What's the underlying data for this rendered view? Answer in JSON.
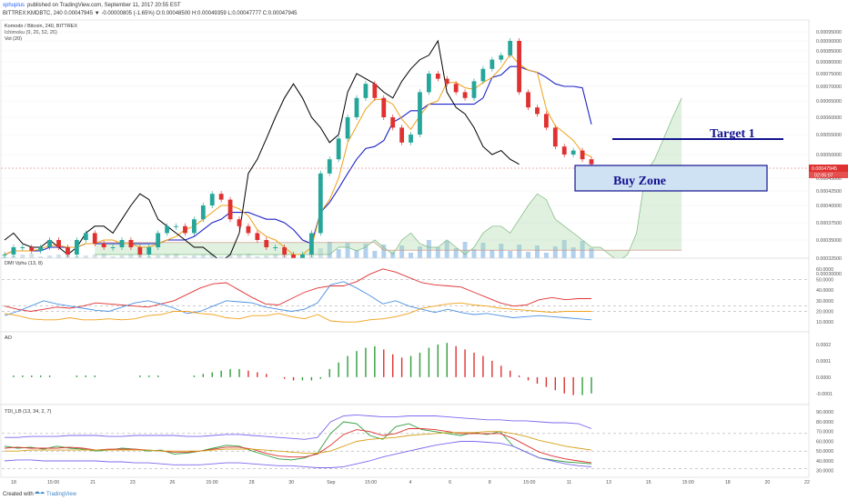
{
  "header": {
    "publisher": "xphuplus",
    "published_text": "published on TradingView.com, September 11, 2017 20:55 EST",
    "symbol_line": "BITTREX:KMDBTC, 240  0.00047945 ▼ -0.00000805 (-1.65%)  O:0.00048500  H:0.00049359  L:0.00047777  C:0.00047945"
  },
  "main_pane": {
    "title": "Komodo / Bitcoin, 240, BITTREX",
    "indicators": [
      "Ichimoku (9, 26, 52, 26)",
      "Vol (20)"
    ],
    "last_price_label": "0.00047945",
    "countdown_label": "02:05:07",
    "annotations": {
      "target": "Target 1",
      "buy_zone": "Buy Zone"
    }
  },
  "panes": {
    "dmi": "DMI Vphu (13, 8)",
    "ao": "AO",
    "tdi": "TDI_LB (13, 34, 2, 7)"
  },
  "footer": {
    "created_with": "Created with",
    "brand": "TradingView"
  },
  "colors": {
    "up": "#26a69a",
    "down": "#e03131",
    "tenkan": "#f0a018",
    "kijun": "#1c22c8",
    "chikou": "#000000",
    "cloud_bull": "#a5d6a7",
    "cloud_bear": "#f5b7b1",
    "annotation": "#13138f",
    "buy_zone_fill": "#cfe2f3"
  },
  "chart_data": [
    {
      "type": "candlestick",
      "title": "Komodo / Bitcoin, 240, BITTREX",
      "x_tick_labels": [
        "18",
        "15:00",
        "21",
        "23",
        "26",
        "15:00",
        "28",
        "30",
        "Sep",
        "15:00",
        "4",
        "6",
        "8",
        "15:00",
        "11",
        "13",
        "15",
        "15:00",
        "18",
        "20",
        "22"
      ],
      "y_tick_labels": [
        "0.00030000",
        "0.00032500",
        "0.00035000",
        "0.00037500",
        "0.00040000",
        "0.00042500",
        "0.00045000",
        "0.00050000",
        "0.00055000",
        "0.00060000",
        "0.00065000",
        "0.00070000",
        "0.00075000",
        "0.00080000",
        "0.00085000",
        "0.00090000",
        "0.00095000"
      ],
      "ylim": [
        0.00029,
        0.00097
      ],
      "last_price": 0.00047945,
      "close_approx": [
        0.00033,
        0.00034,
        0.00034,
        0.000335,
        0.00034,
        0.00035,
        0.00034,
        0.00033,
        0.00035,
        0.00036,
        0.000345,
        0.00034,
        0.00034,
        0.00035,
        0.00034,
        0.00033,
        0.00034,
        0.00036,
        0.00037,
        0.00037,
        0.00036,
        0.00038,
        0.0004,
        0.00042,
        0.00041,
        0.00038,
        0.00037,
        0.00036,
        0.00035,
        0.00034,
        0.00034,
        0.00033,
        0.00032,
        0.00033,
        0.00036,
        0.00046,
        0.00049,
        0.00054,
        0.0006,
        0.00066,
        0.00071,
        0.00066,
        0.0006,
        0.00057,
        0.00053,
        0.00055,
        0.00068,
        0.00075,
        0.00073,
        0.00071,
        0.00068,
        0.00066,
        0.00072,
        0.00077,
        0.00081,
        0.00083,
        0.0009,
        0.00068,
        0.00063,
        0.00061,
        0.00057,
        0.00052,
        0.0005,
        0.00051,
        0.00049,
        0.00047945
      ],
      "annotations": [
        "Target 1",
        "Buy Zone"
      ],
      "target_level": 0.00056,
      "buy_zone": [
        0.00042,
        0.000485
      ]
    },
    {
      "type": "line",
      "title": "DMI Vphu (13, 8)",
      "y_tick_labels": [
        "10.0000",
        "20.0000",
        "30.0000",
        "40.0000",
        "50.0000",
        "60.0000"
      ],
      "ylim": [
        5,
        65
      ],
      "reference_levels": [
        20,
        25,
        50
      ],
      "series": [
        {
          "values": [
            25,
            22,
            20,
            22,
            24,
            23,
            25,
            28,
            27,
            26,
            25,
            24,
            27,
            30,
            36,
            42,
            46,
            47,
            40,
            33,
            27,
            26,
            32,
            38,
            42,
            44,
            44,
            48,
            55,
            60,
            57,
            52,
            47,
            45,
            44,
            43,
            38,
            33,
            28,
            25,
            26,
            31,
            33,
            31,
            32,
            32
          ]
        },
        {
          "values": [
            16,
            20,
            25,
            30,
            27,
            25,
            23,
            21,
            20,
            24,
            28,
            30,
            27,
            23,
            18,
            20,
            25,
            30,
            29,
            28,
            24,
            22,
            20,
            22,
            28,
            45,
            48,
            42,
            35,
            27,
            30,
            25,
            22,
            19,
            22,
            19,
            17,
            18,
            16,
            14,
            15,
            16,
            15,
            14,
            13,
            12
          ]
        },
        {
          "values": [
            18,
            16,
            13,
            12,
            12,
            14,
            12,
            12,
            13,
            12,
            13,
            16,
            17,
            20,
            20,
            18,
            17,
            14,
            13,
            16,
            16,
            18,
            15,
            13,
            17,
            11,
            10,
            10,
            12,
            13,
            15,
            18,
            23,
            25,
            27,
            28,
            26,
            25,
            23,
            22,
            21,
            20,
            19,
            20,
            20,
            20
          ]
        }
      ]
    },
    {
      "type": "bar",
      "title": "AO",
      "y_tick_labels": [
        "0.0002",
        "0.0001",
        "0.0000",
        "-0.0001"
      ],
      "ylim": [
        -0.00014,
        0.00025
      ],
      "values": [
        0.0,
        1e-05,
        1e-05,
        1e-05,
        1e-05,
        1e-05,
        0.0,
        0.0,
        1e-05,
        1e-05,
        1e-05,
        0.0,
        0.0,
        0.0,
        0.0,
        1e-05,
        1e-05,
        1e-05,
        0.0,
        0.0,
        0.0,
        1e-05,
        2e-05,
        3e-05,
        4e-05,
        5e-05,
        5e-05,
        4e-05,
        3e-05,
        2e-05,
        0.0,
        -1e-05,
        -2e-05,
        -2e-05,
        -2e-05,
        -1e-05,
        5e-05,
        9e-05,
        0.00013,
        0.00016,
        0.00018,
        0.00019,
        0.00017,
        0.00014,
        0.00012,
        0.00013,
        0.00015,
        0.00018,
        0.0002,
        0.00021,
        0.00019,
        0.00017,
        0.00015,
        0.00013,
        0.0001,
        7e-05,
        4e-05,
        1e-05,
        -2e-05,
        -4e-05,
        -6e-05,
        -8e-05,
        -0.0001,
        -0.00011,
        -0.00011,
        -0.0001
      ]
    },
    {
      "type": "line",
      "title": "TDI_LB (13, 34, 2, 7)",
      "y_tick_labels": [
        "30.0000",
        "40.0000",
        "50.0000",
        "60.0000",
        "70.0000",
        "80.0000",
        "90.0000"
      ],
      "ylim": [
        26,
        93
      ],
      "reference_levels": [
        32,
        50,
        68
      ],
      "series": [
        {
          "values": [
            55,
            53,
            54,
            52,
            55,
            53,
            52,
            50,
            51,
            53,
            52,
            50,
            51,
            47,
            48,
            50,
            53,
            56,
            55,
            50,
            46,
            42,
            41,
            43,
            48,
            68,
            80,
            78,
            66,
            62,
            75,
            78,
            72,
            70,
            68,
            66,
            69,
            67,
            70,
            55,
            49,
            43,
            41,
            39,
            38,
            37
          ]
        },
        {
          "values": [
            53,
            54,
            53,
            53,
            53,
            54,
            53,
            51,
            52,
            52,
            52,
            51,
            50,
            49,
            49,
            50,
            52,
            54,
            54,
            52,
            48,
            45,
            44,
            44,
            47,
            56,
            67,
            72,
            70,
            66,
            68,
            73,
            73,
            72,
            70,
            68,
            68,
            68,
            68,
            63,
            56,
            49,
            45,
            42,
            40,
            38
          ]
        },
        {
          "values": [
            50,
            50,
            51,
            51,
            51,
            51,
            51,
            51,
            51,
            51,
            51,
            51,
            50,
            50,
            50,
            50,
            51,
            52,
            52,
            52,
            51,
            50,
            49,
            48,
            48,
            50,
            55,
            60,
            62,
            63,
            64,
            66,
            67,
            68,
            69,
            69,
            69,
            70,
            70,
            68,
            65,
            61,
            58,
            55,
            53,
            51
          ]
        },
        {
          "values": [
            64,
            64,
            65,
            65,
            65,
            66,
            66,
            66,
            65,
            65,
            66,
            66,
            66,
            66,
            65,
            65,
            66,
            67,
            67,
            66,
            65,
            64,
            63,
            62,
            64,
            80,
            86,
            87,
            86,
            85,
            85,
            86,
            86,
            86,
            85,
            84,
            83,
            82,
            82,
            81,
            81,
            80,
            79,
            79,
            78,
            73
          ]
        },
        {
          "values": [
            40,
            41,
            41,
            40,
            40,
            40,
            40,
            40,
            39,
            39,
            38,
            38,
            37,
            36,
            36,
            36,
            37,
            38,
            38,
            37,
            36,
            35,
            35,
            34,
            33,
            33,
            34,
            37,
            40,
            44,
            47,
            50,
            53,
            56,
            58,
            60,
            60,
            59,
            58,
            55,
            49,
            43,
            40,
            37,
            35,
            34
          ]
        }
      ]
    }
  ]
}
